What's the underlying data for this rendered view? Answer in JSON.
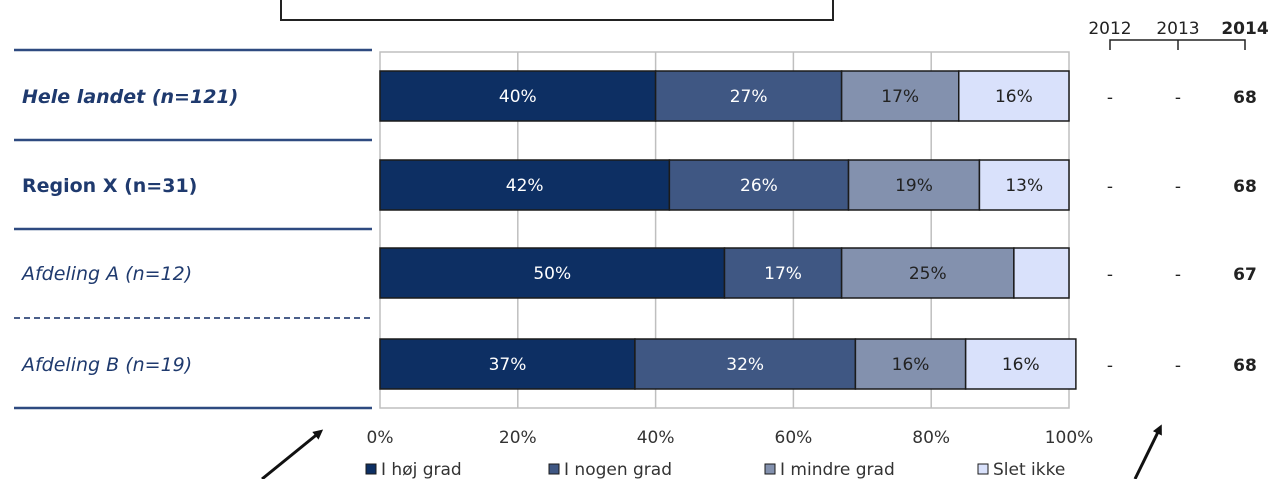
{
  "top_box_text": "",
  "chart_data": {
    "type": "bar",
    "orientation": "horizontal",
    "stacked": true,
    "categories": [
      "Hele landet (n=121)",
      "Region X (n=31)",
      "Afdeling A (n=12)",
      "Afdeling B (n=19)"
    ],
    "category_styles": [
      "bold-italic",
      "bold",
      "italic",
      "italic"
    ],
    "series": [
      {
        "name": "I høj grad",
        "values": [
          40,
          42,
          50,
          37
        ],
        "labels": [
          "40%",
          "42%",
          "50%",
          "37%"
        ],
        "color": "#0d2f63"
      },
      {
        "name": "I nogen grad",
        "values": [
          27,
          26,
          17,
          32
        ],
        "labels": [
          "27%",
          "26%",
          "17%",
          "32%"
        ],
        "color": "#3f5783"
      },
      {
        "name": "I mindre grad",
        "values": [
          17,
          19,
          25,
          16
        ],
        "labels": [
          "17%",
          "19%",
          "25%",
          "16%"
        ],
        "color": "#8391ae"
      },
      {
        "name": "Slet ikke",
        "values": [
          16,
          13,
          8,
          16
        ],
        "labels": [
          "16%",
          "13%",
          "",
          "16%"
        ],
        "color": "#d9e1fb"
      }
    ],
    "xlim": [
      0,
      100
    ],
    "xticks": [
      "0%",
      "20%",
      "40%",
      "60%",
      "80%",
      "100%"
    ],
    "grid": true,
    "legend_position": "bottom",
    "year_columns": {
      "years": [
        "2012",
        "2013",
        "2014"
      ],
      "bold_year": "2014",
      "values": [
        [
          "-",
          "-",
          "68"
        ],
        [
          "-",
          "-",
          "68"
        ],
        [
          "-",
          "-",
          "67"
        ],
        [
          "-",
          "-",
          "68"
        ]
      ]
    }
  }
}
